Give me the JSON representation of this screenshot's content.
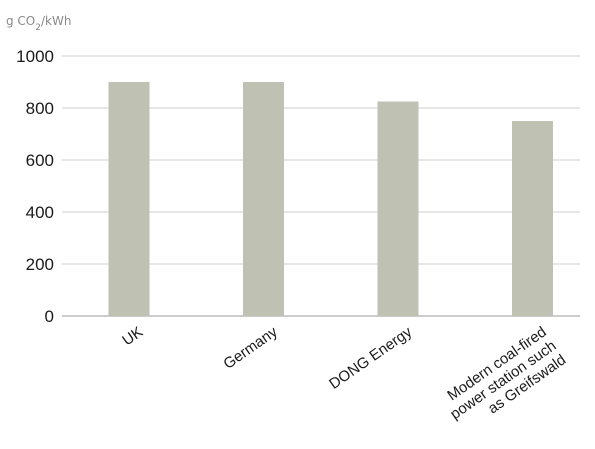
{
  "chart_data": {
    "type": "bar",
    "title": "",
    "xlabel": "",
    "ylabel": "",
    "unit_label": {
      "prefix": "g CO",
      "subscript": "2",
      "suffix": "/kWh"
    },
    "categories": [
      [
        "UK"
      ],
      [
        "Germany"
      ],
      [
        "DONG Energy"
      ],
      [
        "Modern coal-fired",
        "power station such",
        "as Greifswald"
      ]
    ],
    "values": [
      900,
      900,
      825,
      750
    ],
    "ylim": [
      0,
      1000
    ],
    "yticks": [
      0,
      200,
      400,
      600,
      800,
      1000
    ],
    "grid": true,
    "bar_color": "#bfc1b3",
    "grid_color": "#cfcfcf"
  }
}
